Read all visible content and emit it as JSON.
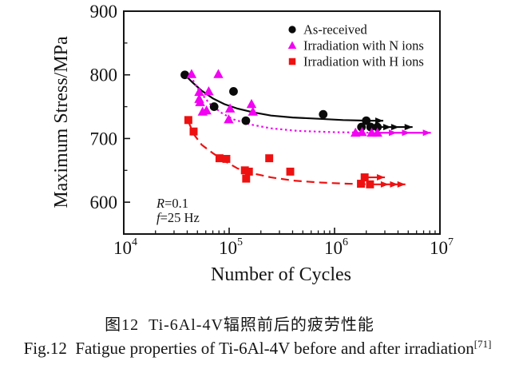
{
  "figure": {
    "caption_zh": "图12  Ti-6Al-4V辐照前后的疲劳性能",
    "caption_en": "Fig.12  Fatigue properties of Ti-6Al-4V before and after irradiation",
    "caption_ref": "[71]"
  },
  "chart_data": {
    "type": "scatter",
    "title": "",
    "xlabel": "Number of Cycles",
    "ylabel": "Maximum Stress/MPa",
    "x_scale": "log",
    "xlim": [
      10000,
      10000000
    ],
    "ylim": [
      550,
      900
    ],
    "y_major_ticks": [
      600,
      700,
      800,
      900
    ],
    "y_minor_ticks": [
      650,
      750,
      850
    ],
    "x_major_ticks": [
      {
        "base": 10,
        "exp": 4
      },
      {
        "base": 10,
        "exp": 5
      },
      {
        "base": 10,
        "exp": 6
      },
      {
        "base": 10,
        "exp": 7
      }
    ],
    "grid": false,
    "legend_position": "inside-top-right",
    "annotations": [
      {
        "italic": "R",
        "rest": "=0.1"
      },
      {
        "italic": "f",
        "rest": "=25 Hz"
      }
    ],
    "series": [
      {
        "name": "As-received",
        "marker": "circle",
        "color": "#0a0a0a",
        "line_style": "solid",
        "points": [
          [
            38000,
            800
          ],
          [
            72000,
            750
          ],
          [
            110000,
            774
          ],
          [
            144000,
            728
          ],
          [
            780000,
            738
          ],
          [
            2000000,
            728
          ],
          [
            1800000,
            718
          ],
          [
            2200000,
            718
          ],
          [
            2550000,
            718
          ]
        ],
        "trend": [
          [
            38000,
            800
          ],
          [
            45000,
            788
          ],
          [
            55000,
            775
          ],
          [
            70000,
            763
          ],
          [
            90000,
            754
          ],
          [
            120000,
            747
          ],
          [
            170000,
            741
          ],
          [
            250000,
            736
          ],
          [
            400000,
            733
          ],
          [
            700000,
            731
          ],
          [
            1200000,
            729
          ],
          [
            2100000,
            728
          ]
        ],
        "arrows": [
          {
            "stress": 728,
            "x_from": 2000000,
            "x_to": 2900000,
            "heads": [
              2900000
            ]
          },
          {
            "stress": 718,
            "x_from": 2550000,
            "x_to": 5500000,
            "heads": [
              3450000,
              4100000,
              5500000
            ]
          }
        ]
      },
      {
        "name": "Irradiation with N ions",
        "marker": "triangle",
        "color": "#f203f2",
        "line_style": "dotted",
        "points": [
          [
            44000,
            801
          ],
          [
            52000,
            773
          ],
          [
            64000,
            774
          ],
          [
            52000,
            762
          ],
          [
            53000,
            757
          ],
          [
            56000,
            742
          ],
          [
            61000,
            744
          ],
          [
            79000,
            801
          ],
          [
            102000,
            747
          ],
          [
            99000,
            730
          ],
          [
            163000,
            754
          ],
          [
            168000,
            742
          ],
          [
            1580000,
            709
          ],
          [
            1820000,
            710
          ],
          [
            2250000,
            709
          ],
          [
            2550000,
            709
          ]
        ],
        "trend": [
          [
            43000,
            798
          ],
          [
            52000,
            775
          ],
          [
            65000,
            755
          ],
          [
            85000,
            740
          ],
          [
            110000,
            730
          ],
          [
            160000,
            722
          ],
          [
            250000,
            716
          ],
          [
            450000,
            712
          ],
          [
            1000000,
            710
          ],
          [
            2600000,
            709
          ]
        ],
        "arrows": [
          {
            "stress": 709,
            "x_from": 2550000,
            "x_to": 8200000,
            "heads": [
              3900000,
              5200000,
              8200000
            ]
          }
        ]
      },
      {
        "name": "Irradiation with H ions",
        "marker": "square",
        "color": "#ee1111",
        "line_style": "dashed",
        "points": [
          [
            41000,
            729
          ],
          [
            46000,
            711
          ],
          [
            81000,
            669
          ],
          [
            94000,
            668
          ],
          [
            141000,
            650
          ],
          [
            154000,
            648
          ],
          [
            145000,
            637
          ],
          [
            240000,
            669
          ],
          [
            380000,
            648
          ],
          [
            1930000,
            639
          ],
          [
            1780000,
            629
          ],
          [
            2170000,
            628
          ]
        ],
        "trend": [
          [
            41000,
            727
          ],
          [
            46000,
            707
          ],
          [
            55000,
            690
          ],
          [
            70000,
            677
          ],
          [
            90000,
            665
          ],
          [
            120000,
            653
          ],
          [
            170000,
            645
          ],
          [
            250000,
            639
          ],
          [
            400000,
            634
          ],
          [
            700000,
            631
          ],
          [
            1300000,
            629
          ],
          [
            2200000,
            628
          ]
        ],
        "arrows": [
          {
            "stress": 639,
            "x_from": 1930000,
            "x_to": 3000000,
            "heads": [
              3000000
            ]
          },
          {
            "stress": 628,
            "x_from": 2170000,
            "x_to": 4700000,
            "heads": [
              3270000,
              4000000,
              4700000
            ]
          }
        ]
      }
    ]
  }
}
